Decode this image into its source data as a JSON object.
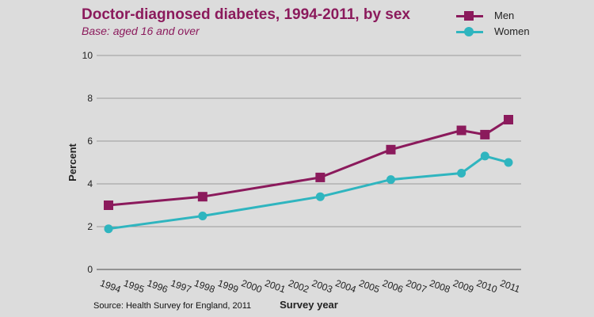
{
  "chart_data": {
    "type": "line",
    "title": "Doctor-diagnosed diabetes, 1994-2011, by sex",
    "subtitle": "Base: aged 16 and over",
    "xlabel": "Survey year",
    "ylabel": "Percent",
    "ylim": [
      0,
      10
    ],
    "yticks": [
      0,
      2,
      4,
      6,
      8,
      10
    ],
    "x_ticks": [
      "1994",
      "1995",
      "1996",
      "1997",
      "1998",
      "1999",
      "2000",
      "2001",
      "2002",
      "2003",
      "2004",
      "2005",
      "2006",
      "2007",
      "2008",
      "2009",
      "2010",
      "2011"
    ],
    "grid": "horizontal",
    "legend_position": "top-right",
    "series": [
      {
        "name": "Men",
        "color": "#8b1a5c",
        "marker": "square",
        "points": [
          {
            "x": "1994",
            "y": 3.0
          },
          {
            "x": "1998",
            "y": 3.4
          },
          {
            "x": "2003",
            "y": 4.3
          },
          {
            "x": "2006",
            "y": 5.6
          },
          {
            "x": "2009",
            "y": 6.5
          },
          {
            "x": "2010",
            "y": 6.3
          },
          {
            "x": "2011",
            "y": 7.0
          }
        ]
      },
      {
        "name": "Women",
        "color": "#2fb5bf",
        "marker": "circle",
        "points": [
          {
            "x": "1994",
            "y": 1.9
          },
          {
            "x": "1998",
            "y": 2.5
          },
          {
            "x": "2003",
            "y": 3.4
          },
          {
            "x": "2006",
            "y": 4.2
          },
          {
            "x": "2009",
            "y": 4.5
          },
          {
            "x": "2010",
            "y": 5.3
          },
          {
            "x": "2011",
            "y": 5.0
          }
        ]
      }
    ],
    "source": "Source: Health Survey for England, 2011"
  }
}
